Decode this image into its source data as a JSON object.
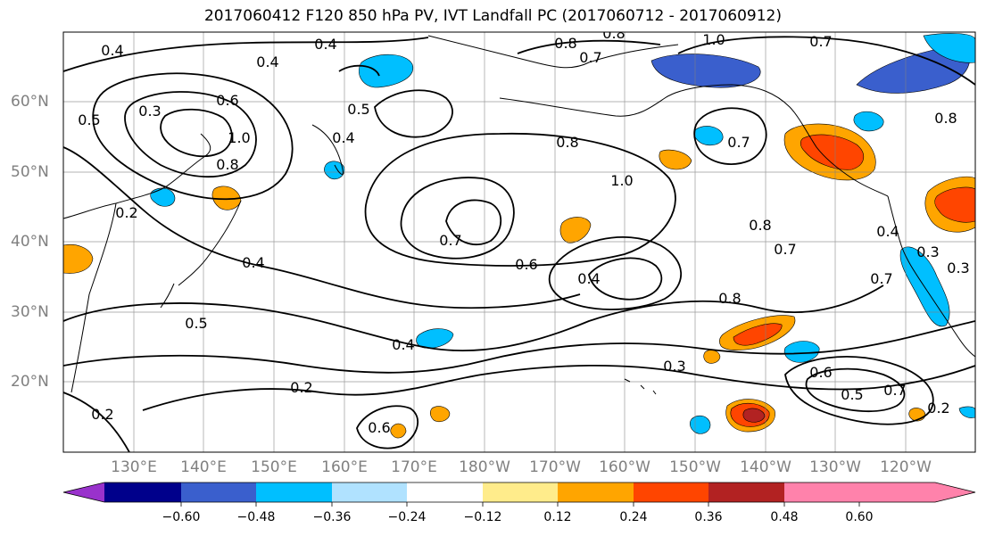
{
  "title": "2017060412 F120 850 hPa PV, IVT Landfall PC (2017060712 - 2017060912)",
  "lat_labels": [
    "20°N",
    "30°N",
    "40°N",
    "50°N",
    "60°N"
  ],
  "lon_labels": [
    "130°E",
    "140°E",
    "150°E",
    "160°E",
    "170°E",
    "180°W",
    "170°W",
    "160°W",
    "150°W",
    "140°W",
    "130°W",
    "120°W"
  ],
  "contour_labels": [
    "0.4",
    "0.4",
    "0.4",
    "0.5",
    "0.6",
    "1.0",
    "0.8",
    "0.5",
    "0.4",
    "0.2",
    "0.3",
    "0.4",
    "0.5",
    "0.2",
    "0.2",
    "0.4",
    "0.6",
    "0.4",
    "0.7",
    "1.0",
    "0.8",
    "0.7",
    "0.8",
    "0.7",
    "0.8",
    "0.3",
    "0.6",
    "0.5",
    "0.7",
    "0.2",
    "0.7",
    "0.8",
    "0.4",
    "0.3",
    "0.3",
    "0.7",
    "0.8",
    "1.0",
    "0.7",
    "0.8",
    "0.6"
  ],
  "colorbar": {
    "colors": [
      "#9932cc",
      "#00008b",
      "#3a5fcd",
      "#00bfff",
      "#b0e2ff",
      "#ffffff",
      "#ffec8b",
      "#ffa500",
      "#ff4500",
      "#b22222",
      "#ff82ab"
    ],
    "tick_labels": [
      "−0.60",
      "−0.48",
      "−0.36",
      "−0.24",
      "−0.12",
      "0.12",
      "0.24",
      "0.36",
      "0.48",
      "0.60"
    ]
  }
}
